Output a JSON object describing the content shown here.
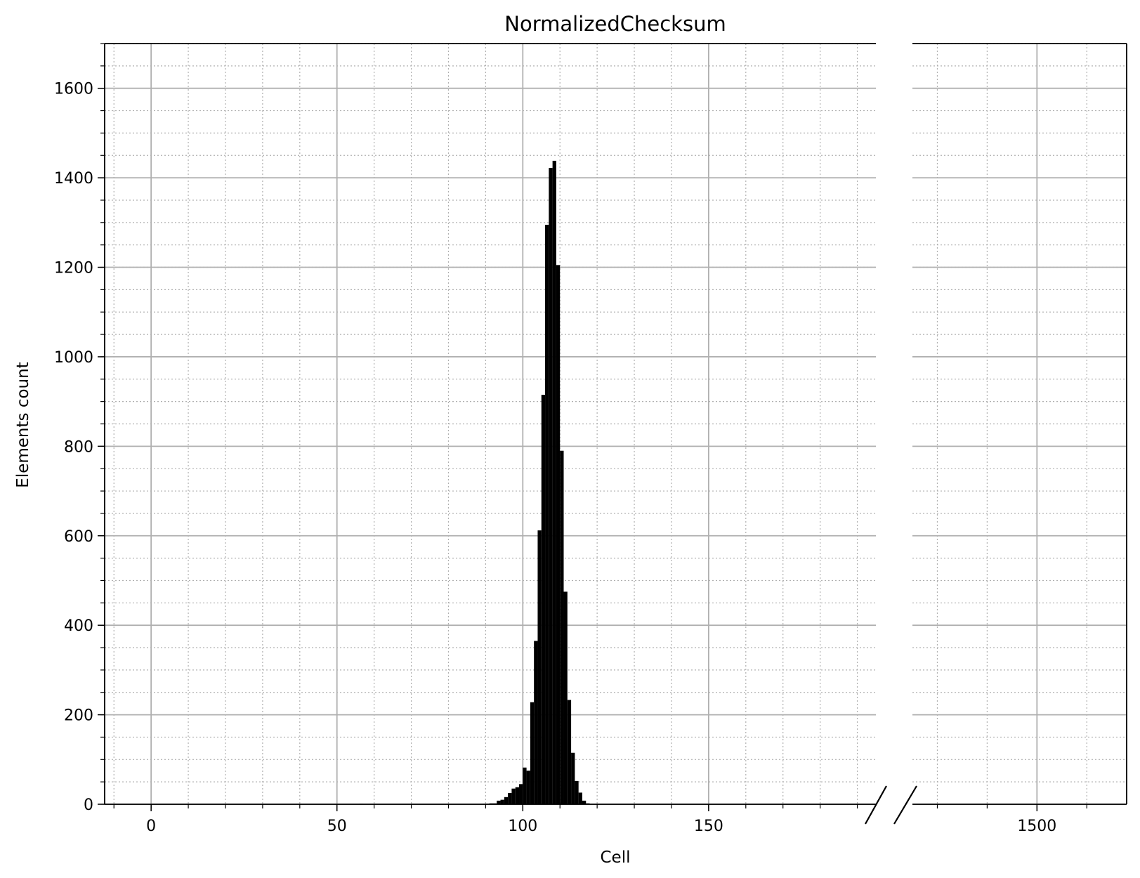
{
  "chart_data": {
    "type": "bar",
    "title": "NormalizedChecksum",
    "xlabel": "Cell",
    "ylabel": "Elements count",
    "ylim": [
      0,
      1700
    ],
    "y_major_ticks": [
      0,
      200,
      400,
      600,
      800,
      1000,
      1200,
      1400,
      1600
    ],
    "y_minor_step": 50,
    "grid": true,
    "broken_x_axis": true,
    "x_segments": [
      {
        "xlim": [
          -12.5,
          195
        ],
        "major_ticks": [
          0,
          50,
          100,
          150
        ],
        "minor_step": 10
      },
      {
        "xlim": [
          1375,
          1590
        ],
        "major_ticks": [
          1500
        ],
        "minor_step": 50
      }
    ],
    "bin_width": 1,
    "bins": [
      {
        "x": 56,
        "value": 1
      },
      {
        "x": 57,
        "value": 0
      },
      {
        "x": 90,
        "value": 1
      },
      {
        "x": 91,
        "value": 2
      },
      {
        "x": 92,
        "value": 2
      },
      {
        "x": 93,
        "value": 8
      },
      {
        "x": 94,
        "value": 10
      },
      {
        "x": 95,
        "value": 16
      },
      {
        "x": 96,
        "value": 25
      },
      {
        "x": 97,
        "value": 35
      },
      {
        "x": 98,
        "value": 38
      },
      {
        "x": 99,
        "value": 45
      },
      {
        "x": 100,
        "value": 82
      },
      {
        "x": 101,
        "value": 75
      },
      {
        "x": 102,
        "value": 228
      },
      {
        "x": 103,
        "value": 365
      },
      {
        "x": 104,
        "value": 612
      },
      {
        "x": 105,
        "value": 915
      },
      {
        "x": 106,
        "value": 1295
      },
      {
        "x": 107,
        "value": 1422
      },
      {
        "x": 108,
        "value": 1438
      },
      {
        "x": 109,
        "value": 1205
      },
      {
        "x": 110,
        "value": 790
      },
      {
        "x": 111,
        "value": 475
      },
      {
        "x": 112,
        "value": 233
      },
      {
        "x": 113,
        "value": 115
      },
      {
        "x": 114,
        "value": 52
      },
      {
        "x": 115,
        "value": 26
      },
      {
        "x": 116,
        "value": 8
      },
      {
        "x": 117,
        "value": 2
      }
    ],
    "bar_color": "#000000",
    "major_grid_color": "#b0b0b0",
    "minor_grid_color": "#b0b0b0"
  }
}
